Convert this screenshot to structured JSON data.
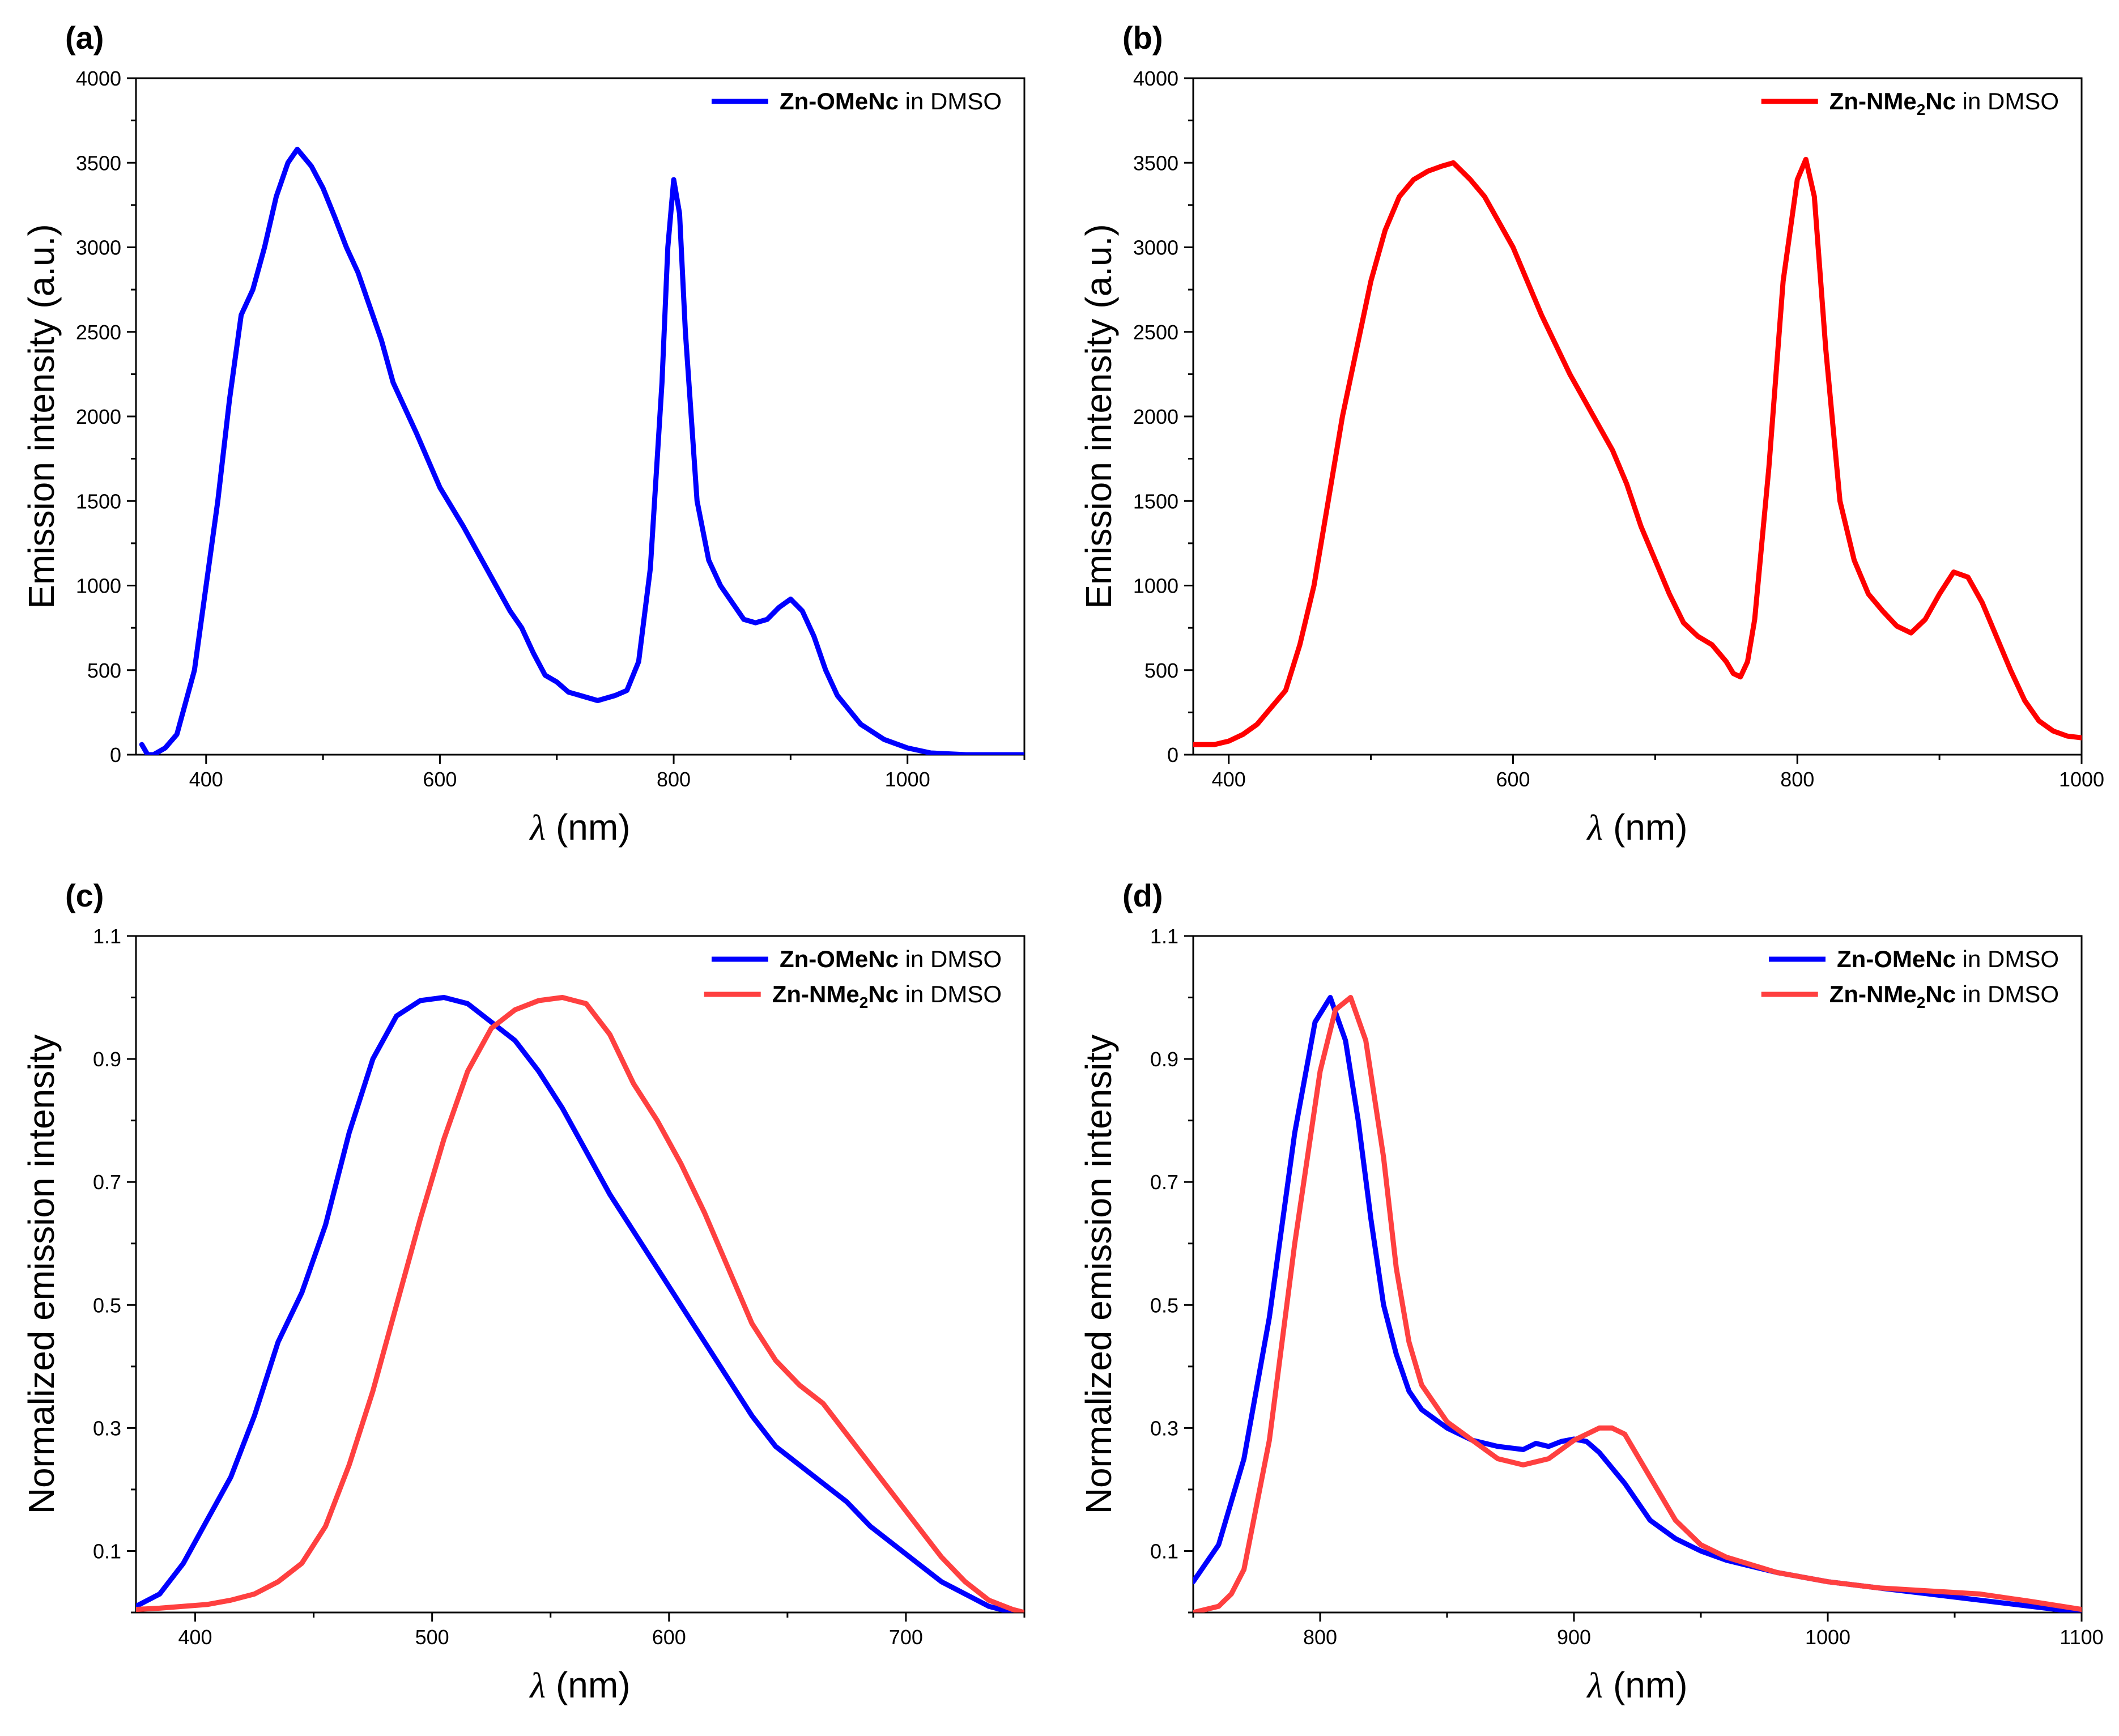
{
  "figure_title": "",
  "chart_data": [
    {
      "panel": "(a)",
      "type": "line",
      "xlabel_symbol": "λ",
      "xlabel_unit": "(nm)",
      "ylabel": "Emission intensity (a.u.)",
      "xlim": [
        340,
        1100
      ],
      "ylim": [
        0,
        4000
      ],
      "xticks": [
        400,
        600,
        800,
        1000
      ],
      "yticks": [
        0,
        500,
        1000,
        1500,
        2000,
        2500,
        3000,
        3500,
        4000
      ],
      "legend_position": "top-right",
      "series": [
        {
          "compound": "Zn-OMeNc",
          "compound_sub": "",
          "suffix": " in DMSO",
          "color": "#0000ff",
          "x": [
            345,
            350,
            355,
            365,
            375,
            390,
            400,
            410,
            420,
            430,
            440,
            450,
            460,
            470,
            478,
            490,
            500,
            510,
            520,
            530,
            540,
            550,
            560,
            580,
            600,
            620,
            640,
            660,
            670,
            680,
            690,
            700,
            710,
            720,
            735,
            750,
            760,
            770,
            780,
            790,
            795,
            800,
            805,
            810,
            820,
            830,
            840,
            850,
            860,
            870,
            880,
            890,
            900,
            910,
            920,
            930,
            940,
            960,
            980,
            1000,
            1020,
            1050,
            1100
          ],
          "y": [
            60,
            0,
            0,
            40,
            120,
            500,
            1000,
            1500,
            2100,
            2600,
            2750,
            3000,
            3300,
            3500,
            3580,
            3480,
            3350,
            3180,
            3000,
            2850,
            2650,
            2450,
            2200,
            1900,
            1580,
            1350,
            1100,
            850,
            750,
            600,
            470,
            430,
            370,
            350,
            320,
            350,
            380,
            550,
            1100,
            2200,
            3000,
            3400,
            3200,
            2500,
            1500,
            1150,
            1000,
            900,
            800,
            780,
            800,
            870,
            920,
            850,
            700,
            500,
            350,
            180,
            90,
            40,
            10,
            0,
            0
          ]
        }
      ]
    },
    {
      "panel": "(b)",
      "type": "line",
      "xlabel_symbol": "λ",
      "xlabel_unit": "(nm)",
      "ylabel": "Emission intensity (a.u.)",
      "xlim": [
        375,
        1000
      ],
      "ylim": [
        0,
        4000
      ],
      "xticks": [
        400,
        600,
        800,
        1000
      ],
      "yticks": [
        0,
        500,
        1000,
        1500,
        2000,
        2500,
        3000,
        3500,
        4000
      ],
      "legend_position": "top-right",
      "series": [
        {
          "compound": "Zn-NMe",
          "compound_sub": "2",
          "compound_tail": "Nc",
          "suffix": " in DMSO",
          "color": "#ff0000",
          "x": [
            375,
            390,
            400,
            410,
            420,
            430,
            440,
            450,
            460,
            470,
            480,
            490,
            500,
            510,
            520,
            530,
            540,
            550,
            558,
            570,
            580,
            590,
            600,
            620,
            640,
            660,
            670,
            680,
            690,
            700,
            710,
            720,
            730,
            740,
            750,
            755,
            760,
            765,
            770,
            780,
            790,
            800,
            806,
            812,
            820,
            830,
            840,
            850,
            860,
            870,
            880,
            890,
            900,
            910,
            920,
            930,
            940,
            950,
            960,
            970,
            980,
            990,
            1000
          ],
          "y": [
            60,
            60,
            80,
            120,
            180,
            280,
            380,
            650,
            1000,
            1500,
            2000,
            2400,
            2800,
            3100,
            3300,
            3400,
            3450,
            3480,
            3500,
            3400,
            3300,
            3150,
            3000,
            2600,
            2250,
            1950,
            1800,
            1600,
            1350,
            1150,
            950,
            780,
            700,
            650,
            550,
            480,
            460,
            550,
            800,
            1700,
            2800,
            3400,
            3520,
            3300,
            2400,
            1500,
            1150,
            950,
            850,
            760,
            720,
            800,
            950,
            1080,
            1050,
            900,
            700,
            500,
            320,
            200,
            140,
            110,
            100
          ]
        }
      ]
    },
    {
      "panel": "(c)",
      "type": "line",
      "xlabel_symbol": "λ",
      "xlabel_unit": "(nm)",
      "ylabel": "Normalized emission intensity",
      "xlim": [
        375,
        750
      ],
      "ylim": [
        0,
        1.1
      ],
      "xticks": [
        400,
        500,
        600,
        700
      ],
      "yticks": [
        0.1,
        0.3,
        0.5,
        0.7,
        0.9,
        1.1
      ],
      "legend_position": "top-right",
      "series": [
        {
          "compound": "Zn-OMeNc",
          "compound_sub": "",
          "suffix": " in DMSO",
          "color": "#0000ff",
          "x": [
            375,
            385,
            395,
            405,
            415,
            425,
            435,
            445,
            455,
            465,
            475,
            485,
            495,
            505,
            515,
            525,
            535,
            545,
            555,
            565,
            575,
            585,
            595,
            605,
            615,
            625,
            635,
            645,
            655,
            665,
            675,
            685,
            695,
            705,
            715,
            725,
            735,
            745,
            750
          ],
          "y": [
            0.01,
            0.03,
            0.08,
            0.15,
            0.22,
            0.32,
            0.44,
            0.52,
            0.63,
            0.78,
            0.9,
            0.97,
            0.995,
            1.0,
            0.99,
            0.96,
            0.93,
            0.88,
            0.82,
            0.75,
            0.68,
            0.62,
            0.56,
            0.5,
            0.44,
            0.38,
            0.32,
            0.27,
            0.24,
            0.21,
            0.18,
            0.14,
            0.11,
            0.08,
            0.05,
            0.03,
            0.01,
            0.0,
            0.0
          ]
        },
        {
          "compound": "Zn-NMe",
          "compound_sub": "2",
          "compound_tail": "Nc",
          "suffix": " in DMSO",
          "color": "#ff4040",
          "x": [
            375,
            385,
            395,
            405,
            415,
            425,
            435,
            445,
            455,
            465,
            475,
            485,
            495,
            505,
            515,
            525,
            535,
            545,
            555,
            565,
            575,
            585,
            595,
            605,
            615,
            625,
            635,
            645,
            655,
            665,
            675,
            685,
            695,
            705,
            715,
            725,
            735,
            745,
            750
          ],
          "y": [
            0.005,
            0.007,
            0.01,
            0.013,
            0.02,
            0.03,
            0.05,
            0.08,
            0.14,
            0.24,
            0.36,
            0.5,
            0.64,
            0.77,
            0.88,
            0.95,
            0.98,
            0.995,
            1.0,
            0.99,
            0.94,
            0.86,
            0.8,
            0.73,
            0.65,
            0.56,
            0.47,
            0.41,
            0.37,
            0.34,
            0.29,
            0.24,
            0.19,
            0.14,
            0.09,
            0.05,
            0.02,
            0.005,
            0.0
          ]
        }
      ]
    },
    {
      "panel": "(d)",
      "type": "line",
      "xlabel_symbol": "λ",
      "xlabel_unit": "(nm)",
      "ylabel": "Normalized emission intensity",
      "xlim": [
        750,
        1100
      ],
      "ylim": [
        0,
        1.1
      ],
      "xticks": [
        800,
        900,
        1000,
        1100
      ],
      "yticks": [
        0.1,
        0.3,
        0.5,
        0.7,
        0.9,
        1.1
      ],
      "legend_position": "top-right",
      "series": [
        {
          "compound": "Zn-OMeNc",
          "compound_sub": "",
          "suffix": " in DMSO",
          "color": "#0000ff",
          "x": [
            750,
            760,
            770,
            780,
            790,
            798,
            804,
            810,
            815,
            820,
            825,
            830,
            835,
            840,
            850,
            860,
            870,
            880,
            885,
            890,
            895,
            900,
            905,
            910,
            920,
            930,
            940,
            950,
            960,
            970,
            980,
            1000,
            1020,
            1040,
            1060,
            1080,
            1100
          ],
          "y": [
            0.05,
            0.11,
            0.25,
            0.48,
            0.78,
            0.96,
            1.0,
            0.93,
            0.8,
            0.64,
            0.5,
            0.42,
            0.36,
            0.33,
            0.3,
            0.28,
            0.27,
            0.265,
            0.275,
            0.27,
            0.278,
            0.282,
            0.278,
            0.26,
            0.21,
            0.15,
            0.12,
            0.1,
            0.085,
            0.075,
            0.065,
            0.05,
            0.04,
            0.03,
            0.02,
            0.01,
            0.0
          ]
        },
        {
          "compound": "Zn-NMe",
          "compound_sub": "2",
          "compound_tail": "Nc",
          "suffix": " in DMSO",
          "color": "#ff4040",
          "x": [
            750,
            760,
            765,
            770,
            780,
            790,
            800,
            806,
            812,
            818,
            825,
            830,
            835,
            840,
            850,
            860,
            870,
            880,
            890,
            900,
            910,
            915,
            920,
            930,
            940,
            950,
            960,
            980,
            1000,
            1020,
            1040,
            1060,
            1080,
            1100
          ],
          "y": [
            0.0,
            0.01,
            0.03,
            0.07,
            0.28,
            0.6,
            0.88,
            0.98,
            1.0,
            0.93,
            0.74,
            0.56,
            0.44,
            0.37,
            0.31,
            0.28,
            0.25,
            0.24,
            0.25,
            0.28,
            0.3,
            0.3,
            0.29,
            0.22,
            0.15,
            0.11,
            0.09,
            0.065,
            0.05,
            0.04,
            0.035,
            0.03,
            0.018,
            0.005
          ]
        }
      ]
    }
  ]
}
